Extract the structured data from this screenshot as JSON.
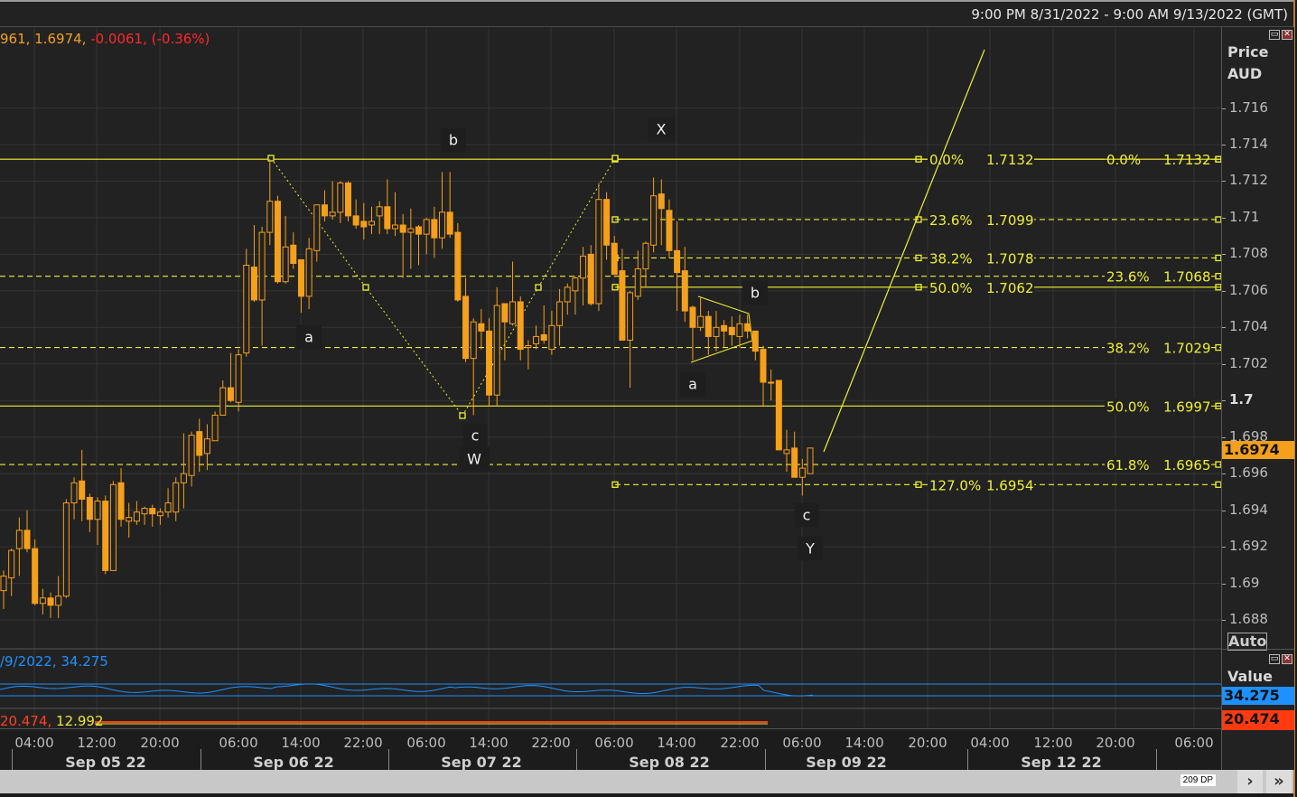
{
  "header": {
    "date_range": "9:00 PM 8/31/2022 - 9:00 AM 9/13/2022 (GMT)",
    "ohlc_partial": "961, 1.6974, ",
    "change": "-0.0061, (-0.36%)"
  },
  "price_axis": {
    "title": "Price",
    "currency": "AUD",
    "ticks": [
      "1.716",
      "1.714",
      "1.712",
      "1.71",
      "1.708",
      "1.706",
      "1.704",
      "1.702",
      "1.7",
      "1.698",
      "1.696",
      "1.694",
      "1.692",
      "1.69",
      "1.688"
    ],
    "tick_values": [
      1.716,
      1.714,
      1.712,
      1.71,
      1.708,
      1.706,
      1.704,
      1.702,
      1.7,
      1.698,
      1.696,
      1.694,
      1.692,
      1.69,
      1.688
    ],
    "last_price": "1.6974",
    "last_price_color": "#f5a01a",
    "auto_label": "Auto"
  },
  "indicator1": {
    "legend": "/9/2022, 34.275",
    "axis_title": "Value",
    "value": "34.275",
    "color": "#1e90ff"
  },
  "indicator2": {
    "legend_a": "20.474, ",
    "legend_b": "12.992",
    "value": "20.474",
    "color": "#ff3a10",
    "color_b": "#e8e830"
  },
  "time_axis": {
    "ticks": [
      "04:00",
      "12:00",
      "20:00",
      "06:00",
      "14:00",
      "22:00",
      "06:00",
      "14:00",
      "22:00",
      "06:00",
      "14:00",
      "22:00",
      "06:00",
      "14:00",
      "20:00",
      "04:00",
      "12:00",
      "20:00",
      "06:00"
    ],
    "dates": [
      "Sep 05 22",
      "Sep 06 22",
      "Sep 07 22",
      "Sep 08 22",
      "Sep 09 22",
      "Sep 12 22"
    ]
  },
  "bottom_bar": {
    "data_points": "209 DP",
    "next": "›",
    "end": "»"
  },
  "wave_labels": [
    "b",
    "X",
    "a",
    "c",
    "W",
    "b",
    "a",
    "c",
    "Y"
  ],
  "fib_colors": {
    "line": "#f0f030"
  },
  "fib_sets": [
    {
      "levels": [
        {
          "pct": "0.0%",
          "price": "1.7132",
          "value": 1.7132,
          "style": "solid"
        },
        {
          "pct": "23.6%",
          "price": "1.7068",
          "value": 1.7068,
          "style": "dashed"
        },
        {
          "pct": "38.2%",
          "price": "1.7029",
          "value": 1.7029,
          "style": "dashed"
        },
        {
          "pct": "50.0%",
          "price": "1.6997",
          "value": 1.6997,
          "style": "solid"
        },
        {
          "pct": "61.8%",
          "price": "1.6965",
          "value": 1.6965,
          "style": "dashed"
        }
      ]
    },
    {
      "levels": [
        {
          "pct": "0.0%",
          "price": "1.7132",
          "value": 1.7132,
          "style": "solid"
        },
        {
          "pct": "23.6%",
          "price": "1.7099",
          "value": 1.7099,
          "style": "dashed"
        },
        {
          "pct": "38.2%",
          "price": "1.7078",
          "value": 1.7078,
          "style": "dashed"
        },
        {
          "pct": "50.0%",
          "price": "1.7062",
          "value": 1.7062,
          "style": "solid"
        },
        {
          "pct": "127.0%",
          "price": "1.6954",
          "value": 1.6954,
          "style": "dashed"
        }
      ]
    }
  ],
  "chart_data": {
    "type": "candlestick",
    "ylabel": "Price AUD",
    "ylim": [
      1.6873,
      1.7185
    ],
    "grid": true,
    "candle_color": "#f5a01a",
    "ohlc": [
      [
        1.6896,
        1.6907,
        1.6886,
        1.6904
      ],
      [
        1.6903,
        1.6919,
        1.6893,
        1.6918
      ],
      [
        1.6919,
        1.6936,
        1.6904,
        1.6929
      ],
      [
        1.6929,
        1.694,
        1.6917,
        1.6919
      ],
      [
        1.6919,
        1.6924,
        1.6888,
        1.6889
      ],
      [
        1.6889,
        1.6897,
        1.6883,
        1.6892
      ],
      [
        1.6892,
        1.6895,
        1.6881,
        1.6888
      ],
      [
        1.6888,
        1.6904,
        1.6881,
        1.6893
      ],
      [
        1.6893,
        1.6946,
        1.6892,
        1.6944
      ],
      [
        1.6944,
        1.6958,
        1.6935,
        1.6955
      ],
      [
        1.6956,
        1.6973,
        1.6934,
        1.6946
      ],
      [
        1.6947,
        1.6949,
        1.6928,
        1.6935
      ],
      [
        1.6935,
        1.6947,
        1.6921,
        1.6945
      ],
      [
        1.6945,
        1.6948,
        1.6905,
        1.6907
      ],
      [
        1.6907,
        1.6956,
        1.6907,
        1.6954
      ],
      [
        1.6955,
        1.6963,
        1.6931,
        1.6935
      ],
      [
        1.6934,
        1.6944,
        1.6925,
        1.6936
      ],
      [
        1.6934,
        1.6945,
        1.6932,
        1.6939
      ],
      [
        1.6938,
        1.6942,
        1.6932,
        1.6941
      ],
      [
        1.6941,
        1.6943,
        1.6931,
        1.6938
      ],
      [
        1.6937,
        1.6941,
        1.6932,
        1.6939
      ],
      [
        1.6939,
        1.6952,
        1.6936,
        1.6944
      ],
      [
        1.6939,
        1.6958,
        1.6934,
        1.6955
      ],
      [
        1.6955,
        1.6982,
        1.6941,
        1.696
      ],
      [
        1.6959,
        1.6983,
        1.6953,
        1.6981
      ],
      [
        1.6983,
        1.699,
        1.6961,
        1.697
      ],
      [
        1.6971,
        1.6987,
        1.6962,
        1.6979
      ],
      [
        1.6978,
        1.6994,
        1.6978,
        1.6992
      ],
      [
        1.6992,
        1.7011,
        1.6992,
        1.7007
      ],
      [
        1.7007,
        1.7026,
        1.6999,
        1.7
      ],
      [
        1.6999,
        1.7028,
        1.6994,
        1.7025
      ],
      [
        1.7026,
        1.7083,
        1.7024,
        1.7074
      ],
      [
        1.7073,
        1.7096,
        1.7054,
        1.7055
      ],
      [
        1.7055,
        1.7095,
        1.703,
        1.7092
      ],
      [
        1.7092,
        1.7132,
        1.7085,
        1.7109
      ],
      [
        1.7109,
        1.7112,
        1.7064,
        1.7065
      ],
      [
        1.7065,
        1.7101,
        1.7064,
        1.7084
      ],
      [
        1.7085,
        1.7092,
        1.7072,
        1.7075
      ],
      [
        1.7077,
        1.7077,
        1.7048,
        1.7057
      ],
      [
        1.7057,
        1.7089,
        1.705,
        1.7083
      ],
      [
        1.7082,
        1.7107,
        1.7076,
        1.7107
      ],
      [
        1.7107,
        1.7115,
        1.7098,
        1.7101
      ],
      [
        1.7101,
        1.712,
        1.7099,
        1.7103
      ],
      [
        1.7103,
        1.712,
        1.7097,
        1.7119
      ],
      [
        1.7119,
        1.712,
        1.7098,
        1.7101
      ],
      [
        1.7101,
        1.711,
        1.7094,
        1.7096
      ],
      [
        1.7098,
        1.7108,
        1.7088,
        1.7095
      ],
      [
        1.7096,
        1.7106,
        1.7091,
        1.7098
      ],
      [
        1.7101,
        1.7109,
        1.7091,
        1.7106
      ],
      [
        1.7106,
        1.7121,
        1.7091,
        1.7094
      ],
      [
        1.7094,
        1.7114,
        1.709,
        1.7096
      ],
      [
        1.7096,
        1.7102,
        1.7067,
        1.7092
      ],
      [
        1.7092,
        1.7105,
        1.7072,
        1.7094
      ],
      [
        1.7095,
        1.7096,
        1.7074,
        1.7091
      ],
      [
        1.7091,
        1.71,
        1.708,
        1.7099
      ],
      [
        1.7099,
        1.7106,
        1.7078,
        1.7089
      ],
      [
        1.7089,
        1.7125,
        1.7083,
        1.7103
      ],
      [
        1.7103,
        1.7125,
        1.7089,
        1.7091
      ],
      [
        1.7092,
        1.7097,
        1.7054,
        1.7055
      ],
      [
        1.7057,
        1.7067,
        1.7021,
        1.7023
      ],
      [
        1.7023,
        1.7045,
        1.6992,
        1.7043
      ],
      [
        1.7042,
        1.705,
        1.7028,
        1.7038
      ],
      [
        1.7038,
        1.7045,
        1.6997,
        1.7003
      ],
      [
        1.7003,
        1.7062,
        1.6997,
        1.7052
      ],
      [
        1.7053,
        1.7053,
        1.7022,
        1.7043
      ],
      [
        1.7042,
        1.7076,
        1.7041,
        1.7054
      ],
      [
        1.7054,
        1.7057,
        1.7022,
        1.7028
      ],
      [
        1.7029,
        1.7033,
        1.7017,
        1.703
      ],
      [
        1.7031,
        1.7041,
        1.7028,
        1.7035
      ],
      [
        1.7036,
        1.7052,
        1.7031,
        1.7033
      ],
      [
        1.7028,
        1.7049,
        1.7025,
        1.7041
      ],
      [
        1.7041,
        1.7061,
        1.703,
        1.7054
      ],
      [
        1.7054,
        1.7064,
        1.7047,
        1.7062
      ],
      [
        1.706,
        1.7068,
        1.7047,
        1.7067
      ],
      [
        1.7067,
        1.7084,
        1.7052,
        1.7079
      ],
      [
        1.708,
        1.7085,
        1.7052,
        1.7053
      ],
      [
        1.7053,
        1.7119,
        1.7049,
        1.711
      ],
      [
        1.711,
        1.7114,
        1.7077,
        1.7085
      ],
      [
        1.7086,
        1.709,
        1.7069,
        1.7069
      ],
      [
        1.7071,
        1.7083,
        1.7033,
        1.7033
      ],
      [
        1.7033,
        1.706,
        1.7007,
        1.7059
      ],
      [
        1.7057,
        1.7082,
        1.7055,
        1.7072
      ],
      [
        1.7072,
        1.7087,
        1.7062,
        1.7086
      ],
      [
        1.7085,
        1.7122,
        1.7081,
        1.7112
      ],
      [
        1.7113,
        1.7121,
        1.7085,
        1.7105
      ],
      [
        1.7104,
        1.711,
        1.7078,
        1.7082
      ],
      [
        1.7082,
        1.7098,
        1.7049,
        1.707
      ],
      [
        1.7071,
        1.7084,
        1.7043,
        1.7049
      ],
      [
        1.7051,
        1.7052,
        1.7022,
        1.704
      ],
      [
        1.704,
        1.7057,
        1.7038,
        1.7046
      ],
      [
        1.7046,
        1.7049,
        1.7025,
        1.7035
      ],
      [
        1.7035,
        1.7049,
        1.7027,
        1.704
      ],
      [
        1.7041,
        1.7044,
        1.7029,
        1.7038
      ],
      [
        1.704,
        1.7046,
        1.703,
        1.7036
      ],
      [
        1.7035,
        1.7047,
        1.7029,
        1.7042
      ],
      [
        1.7042,
        1.7047,
        1.7034,
        1.7038
      ],
      [
        1.7038,
        1.7038,
        1.7022,
        1.7027
      ],
      [
        1.7028,
        1.703,
        1.6997,
        1.701
      ],
      [
        1.701,
        1.7017,
        1.7,
        1.701
      ],
      [
        1.7011,
        1.7011,
        1.6973,
        1.6973
      ],
      [
        1.6971,
        1.6984,
        1.6961,
        1.6973
      ],
      [
        1.6974,
        1.6983,
        1.6958,
        1.6958
      ],
      [
        1.6958,
        1.6968,
        1.6948,
        1.6963
      ],
      [
        1.696,
        1.6974,
        1.696,
        1.6974
      ]
    ]
  }
}
